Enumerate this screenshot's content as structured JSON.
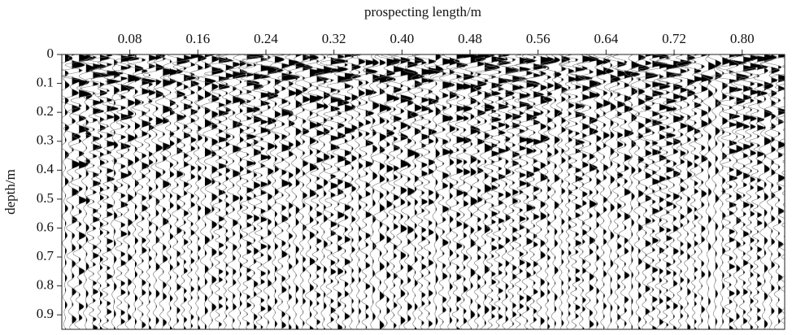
{
  "chart_data": {
    "type": "wiggle",
    "x_label": "prospecting length/m",
    "y_label": "depth/m",
    "xlim": [
      0,
      0.85
    ],
    "xticks": [
      0.08,
      0.16,
      0.24,
      0.32,
      {
        "value": 0.4,
        "label": "0.40"
      },
      0.48,
      0.56,
      0.64,
      0.72,
      {
        "value": 0.8,
        "label": "0.80"
      }
    ],
    "ylim": [
      0,
      0.95
    ],
    "yticks": [
      0,
      0.1,
      0.2,
      0.3,
      0.4,
      0.5,
      0.6,
      0.7,
      0.8,
      0.9
    ],
    "y_inverted": true,
    "x_axis_position": "top",
    "color": "#000000"
  }
}
